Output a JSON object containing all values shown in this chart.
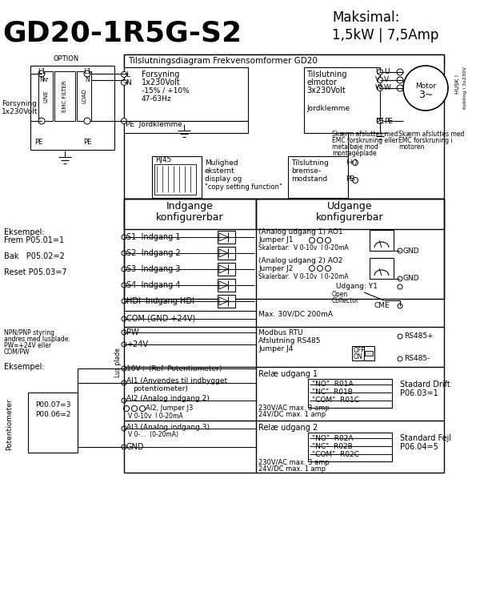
{
  "title_left": "GD20-1R5G-S2",
  "title_right_line1": "Maksimal:",
  "title_right_line2": "1,5kW | 7,5Amp",
  "diagram_title": "Tilslutningsdiagram Frekvensomformer GD20",
  "bg_color": "#ffffff",
  "lc": "#000000",
  "figsize": [
    6.0,
    7.54
  ],
  "dpi": 100
}
